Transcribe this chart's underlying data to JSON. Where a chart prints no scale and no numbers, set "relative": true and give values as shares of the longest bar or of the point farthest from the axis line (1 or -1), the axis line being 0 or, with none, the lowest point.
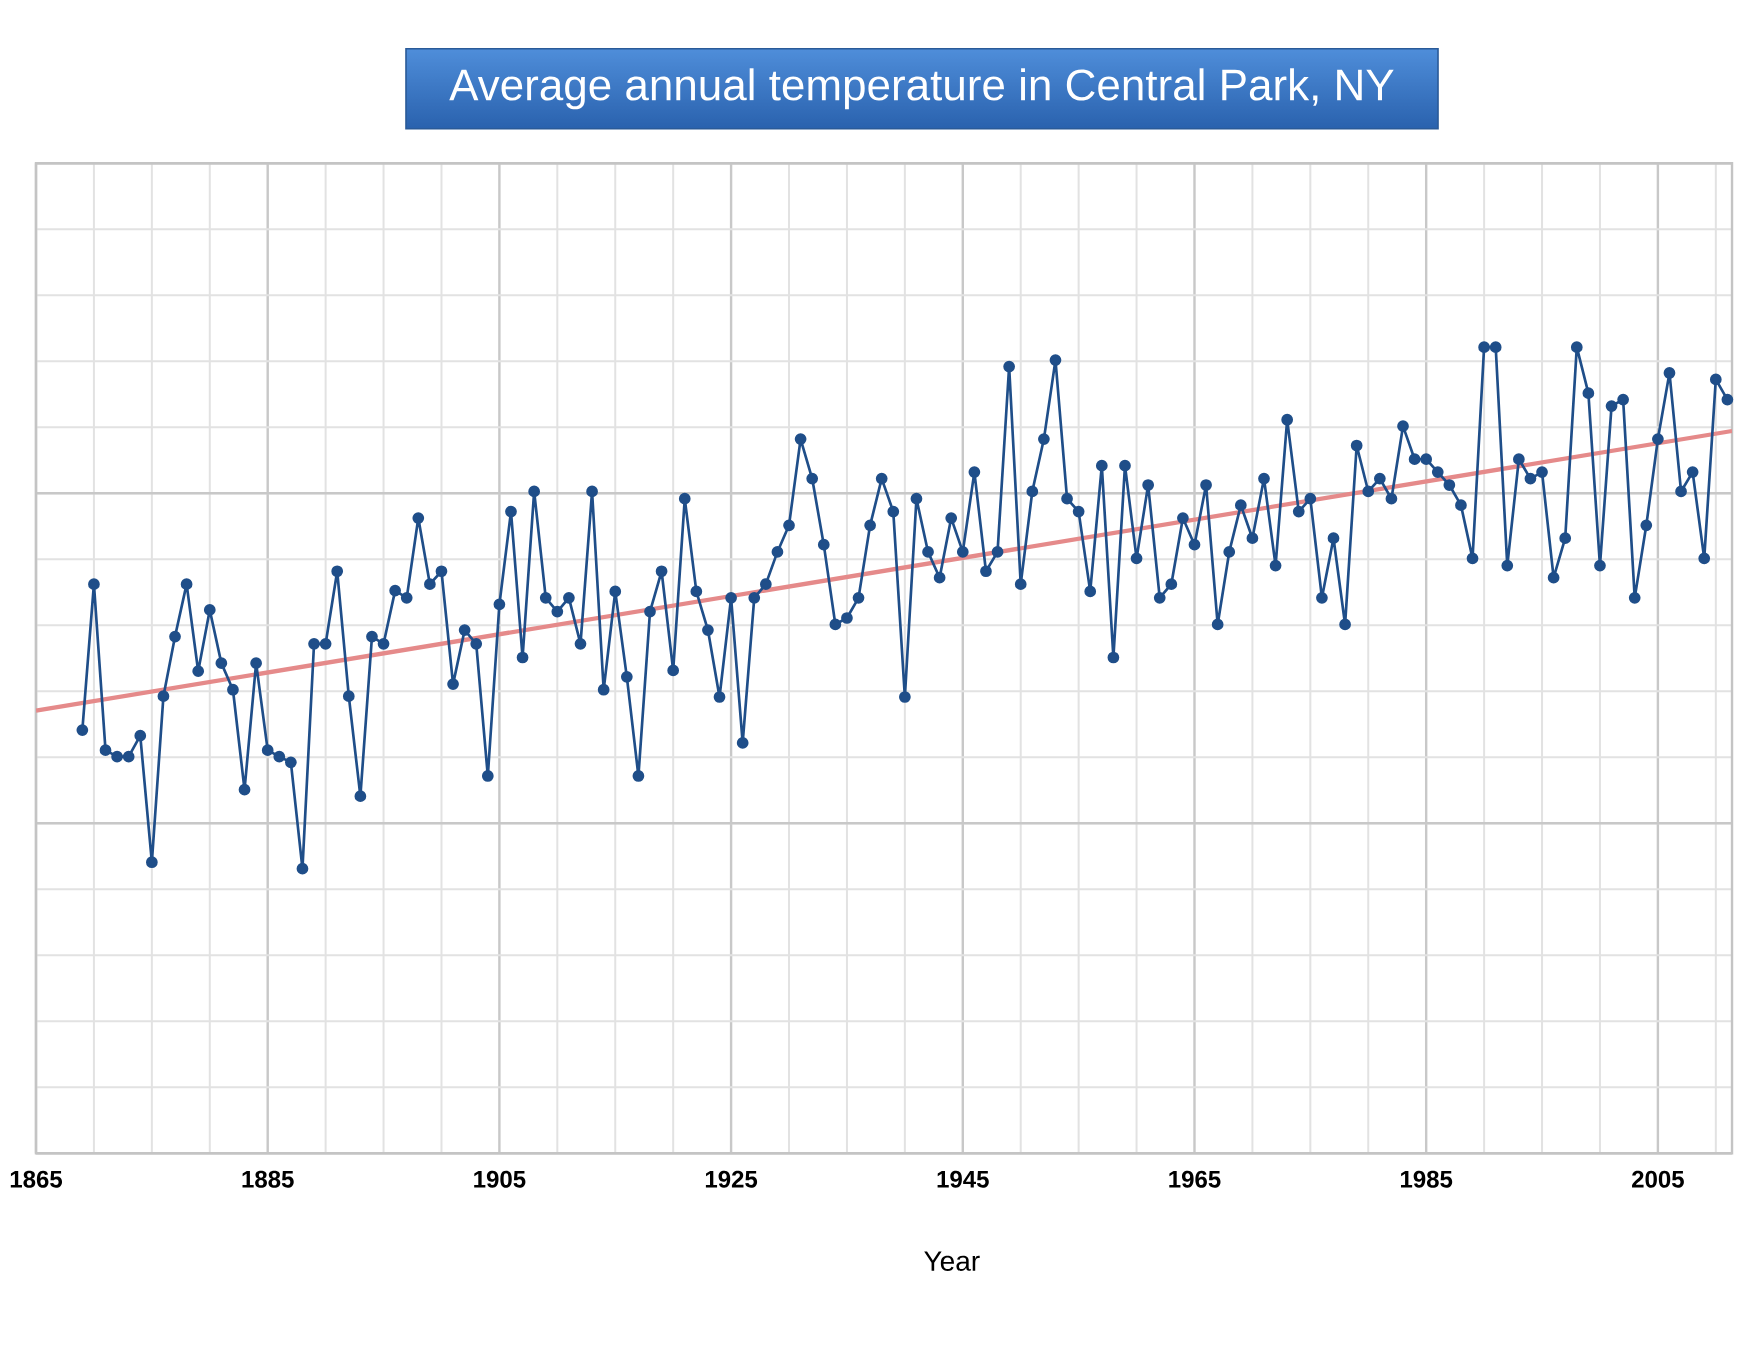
{
  "chart_data": {
    "type": "line",
    "title": "Average annual temperature in Central Park, NY",
    "xlabel": "Year",
    "relative": true,
    "grid": true,
    "xlim": [
      1865,
      2011.4
    ],
    "xticks": [
      1865,
      {
        "value": 1870,
        "label": null
      },
      {
        "value": 1875,
        "label": null
      },
      {
        "value": 1880,
        "label": null
      },
      1885,
      {
        "value": 1890,
        "label": null
      },
      {
        "value": 1895,
        "label": null
      },
      {
        "value": 1900,
        "label": null
      },
      1905,
      {
        "value": 1910,
        "label": null
      },
      {
        "value": 1915,
        "label": null
      },
      {
        "value": 1920,
        "label": null
      },
      1925,
      {
        "value": 1930,
        "label": null
      },
      {
        "value": 1935,
        "label": null
      },
      {
        "value": 1940,
        "label": null
      },
      1945,
      {
        "value": 1950,
        "label": null
      },
      {
        "value": 1955,
        "label": null
      },
      {
        "value": 1960,
        "label": null
      },
      1965,
      {
        "value": 1970,
        "label": null
      },
      {
        "value": 1975,
        "label": null
      },
      {
        "value": 1980,
        "label": null
      },
      1985,
      {
        "value": 1990,
        "label": null
      },
      {
        "value": 1995,
        "label": null
      },
      {
        "value": 2000,
        "label": null
      },
      2005,
      {
        "value": 2010,
        "label": null
      }
    ],
    "x": [
      1869,
      1870,
      1871,
      1872,
      1873,
      1874,
      1875,
      1876,
      1877,
      1878,
      1879,
      1880,
      1881,
      1882,
      1883,
      1884,
      1885,
      1886,
      1887,
      1888,
      1889,
      1890,
      1891,
      1892,
      1893,
      1894,
      1895,
      1896,
      1897,
      1898,
      1899,
      1900,
      1901,
      1902,
      1903,
      1904,
      1905,
      1906,
      1907,
      1908,
      1909,
      1910,
      1911,
      1912,
      1913,
      1914,
      1915,
      1916,
      1917,
      1918,
      1919,
      1920,
      1921,
      1922,
      1923,
      1924,
      1925,
      1926,
      1927,
      1928,
      1929,
      1930,
      1931,
      1932,
      1933,
      1934,
      1935,
      1936,
      1937,
      1938,
      1939,
      1940,
      1941,
      1942,
      1943,
      1944,
      1945,
      1946,
      1947,
      1948,
      1949,
      1950,
      1951,
      1952,
      1953,
      1954,
      1955,
      1956,
      1957,
      1958,
      1959,
      1960,
      1961,
      1962,
      1963,
      1964,
      1965,
      1966,
      1967,
      1968,
      1969,
      1970,
      1971,
      1972,
      1973,
      1974,
      1975,
      1976,
      1977,
      1978,
      1979,
      1980,
      1981,
      1982,
      1983,
      1984,
      1985,
      1986,
      1987,
      1988,
      1989,
      1990,
      1991,
      1992,
      1993,
      1994,
      1995,
      1996,
      1997,
      1998,
      1999,
      2000,
      2001,
      2002,
      2003,
      2004,
      2005,
      2006,
      2007,
      2008,
      2009,
      2010,
      2011
    ],
    "series": [
      {
        "color": "#e58a8a",
        "marker": "none",
        "x": [
          1865,
          2011.4
        ],
        "values": [
          0.549,
          0.896
        ]
      },
      {
        "color": "#1f4e89",
        "marker": "circle",
        "values": [
          0.525,
          0.706,
          0.5,
          0.492,
          0.492,
          0.518,
          0.361,
          0.567,
          0.641,
          0.706,
          0.598,
          0.674,
          0.608,
          0.575,
          0.451,
          0.608,
          0.5,
          0.492,
          0.485,
          0.353,
          0.632,
          0.632,
          0.722,
          0.567,
          0.443,
          0.641,
          0.632,
          0.698,
          0.689,
          0.788,
          0.706,
          0.722,
          0.582,
          0.649,
          0.632,
          0.468,
          0.681,
          0.796,
          0.615,
          0.821,
          0.689,
          0.672,
          0.689,
          0.632,
          0.821,
          0.575,
          0.697,
          0.591,
          0.468,
          0.672,
          0.722,
          0.599,
          0.812,
          0.697,
          0.649,
          0.566,
          0.689,
          0.509,
          0.689,
          0.706,
          0.746,
          0.779,
          0.886,
          0.837,
          0.755,
          0.656,
          0.664,
          0.689,
          0.779,
          0.837,
          0.796,
          0.566,
          0.812,
          0.746,
          0.714,
          0.788,
          0.746,
          0.845,
          0.722,
          0.746,
          0.976,
          0.706,
          0.821,
          0.886,
          0.984,
          0.812,
          0.796,
          0.697,
          0.853,
          0.615,
          0.853,
          0.738,
          0.829,
          0.689,
          0.706,
          0.788,
          0.755,
          0.829,
          0.656,
          0.746,
          0.804,
          0.763,
          0.837,
          0.729,
          0.91,
          0.796,
          0.812,
          0.689,
          0.763,
          0.656,
          0.878,
          0.821,
          0.837,
          0.812,
          0.902,
          0.861,
          0.861,
          0.845,
          0.829,
          0.804,
          0.738,
          1,
          1,
          0.729,
          0.861,
          0.837,
          0.845,
          0.714,
          0.763,
          1,
          0.943,
          0.729,
          0.927,
          0.935,
          0.689,
          0.779,
          0.886,
          0.968,
          0.821,
          0.845,
          0.738,
          0.96,
          0.935
        ]
      }
    ]
  }
}
